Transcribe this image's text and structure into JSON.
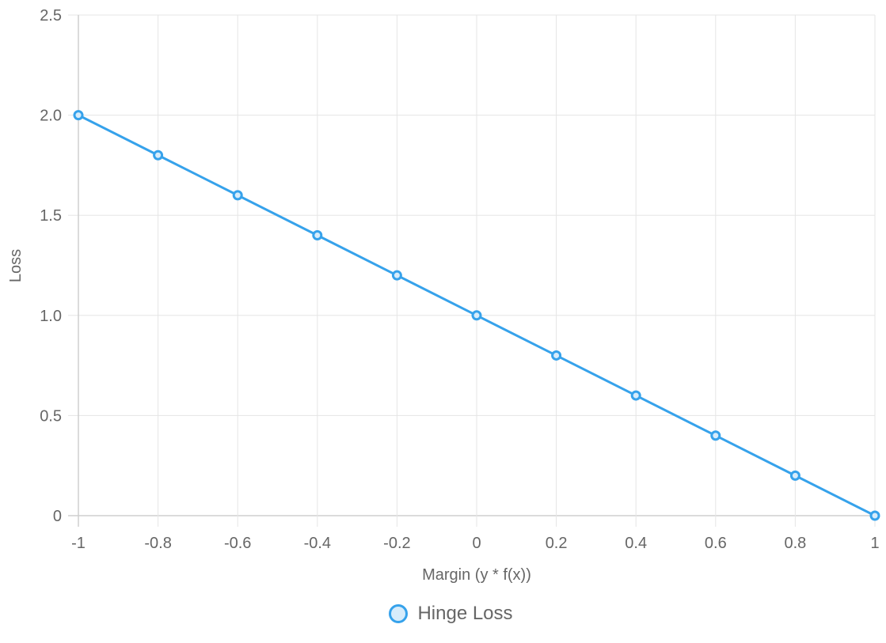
{
  "chart_data": {
    "type": "line",
    "title": "",
    "xlabel": "Margin (y * f(x))",
    "ylabel": "Loss",
    "x": [
      -1,
      -0.8,
      -0.6,
      -0.4,
      -0.2,
      0,
      0.2,
      0.4,
      0.6,
      0.8,
      1
    ],
    "x_tick_labels": [
      "-1",
      "-0.8",
      "-0.6",
      "-0.4",
      "-0.2",
      "0",
      "0.2",
      "0.4",
      "0.6",
      "0.8",
      "1"
    ],
    "y_tick_labels": [
      "0",
      "0.5",
      "1.0",
      "1.5",
      "2.0",
      "2.5"
    ],
    "y_ticks": [
      0,
      0.5,
      1.0,
      1.5,
      2.0,
      2.5
    ],
    "xlim": [
      -1,
      1
    ],
    "ylim": [
      0,
      2.5
    ],
    "grid": true,
    "legend_position": "bottom",
    "series": [
      {
        "name": "Hinge Loss",
        "values": [
          2.0,
          1.8,
          1.6,
          1.4,
          1.2,
          1.0,
          0.8,
          0.6,
          0.4,
          0.2,
          0.0
        ],
        "color": "#36a2eb",
        "fill": "#d7ecfb"
      }
    ]
  },
  "legend": {
    "items": [
      {
        "label": "Hinge Loss"
      }
    ]
  },
  "axes": {
    "x_title": "Margin (y * f(x))",
    "y_title": "Loss"
  }
}
